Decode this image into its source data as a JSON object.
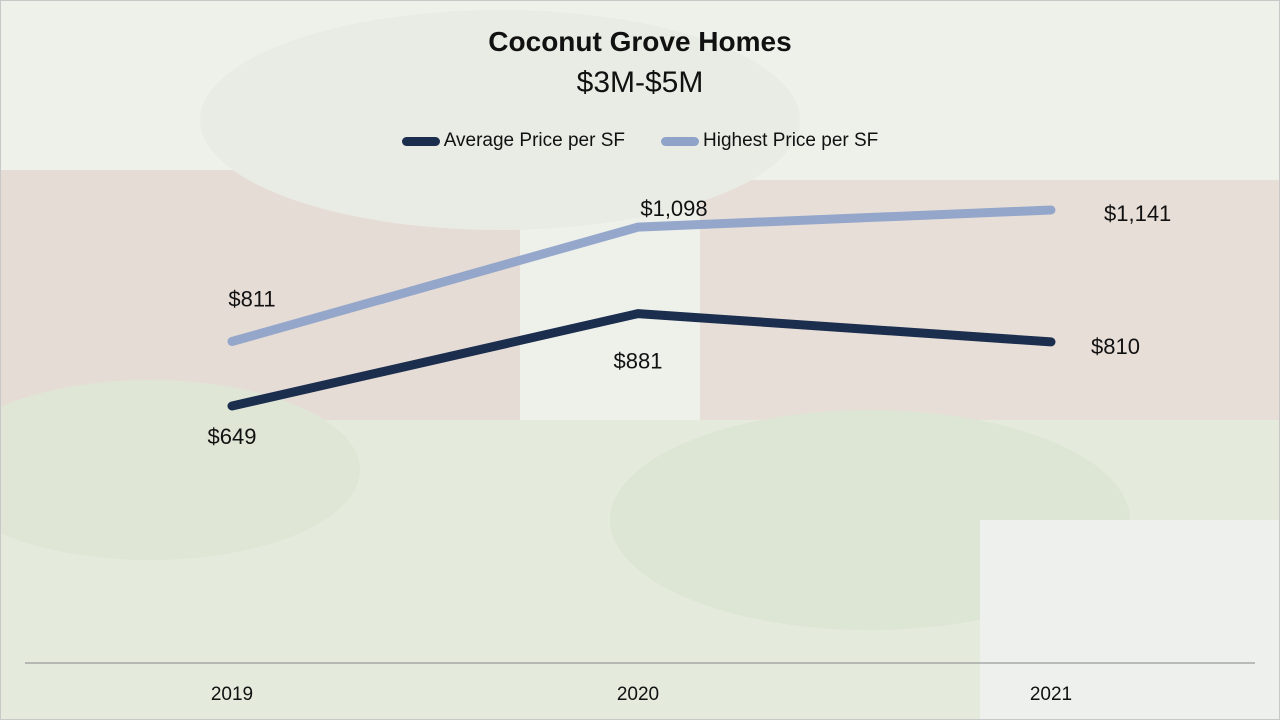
{
  "chart_data": {
    "type": "line",
    "title": "Coconut Grove Homes",
    "subtitle": "$3M-$5M",
    "xlabel": "",
    "ylabel": "",
    "categories": [
      "2019",
      "2020",
      "2021"
    ],
    "ylim": [
      400,
      1400
    ],
    "grid": false,
    "legend_position": "top",
    "series": [
      {
        "name": "Average Price per SF",
        "values": [
          649,
          881,
          810
        ],
        "labels": [
          "$649",
          "$881",
          "$810"
        ],
        "color": "#1c2e4e"
      },
      {
        "name": "Highest Price per SF",
        "values": [
          811,
          1098,
          1141
        ],
        "labels": [
          "$811",
          "$1,098",
          "$1,141"
        ],
        "color": "#8fa3c9"
      }
    ]
  }
}
